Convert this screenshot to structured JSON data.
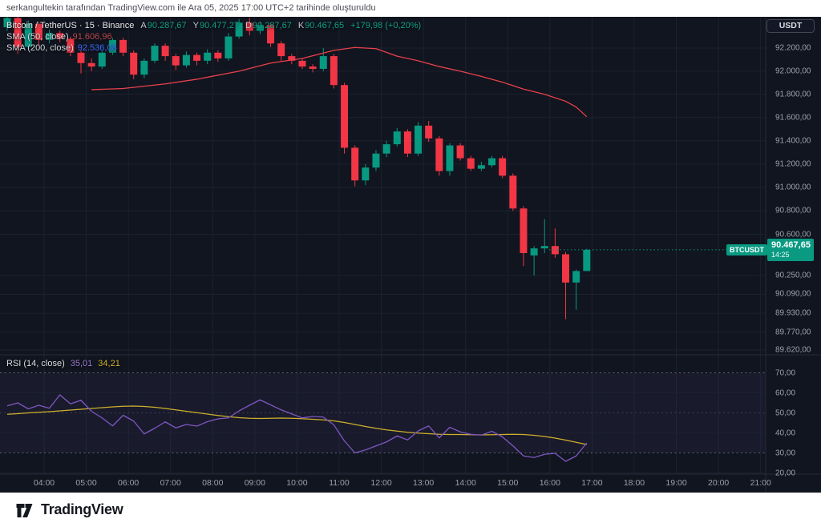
{
  "attribution": "serkangultekin tarafından TradingView.com ile Ara 05, 2025 17:00 UTC+2 tarihinde oluşturuldu",
  "legend": {
    "symbol": "Bitcoin / TetherUS · 15 · Binance",
    "ohlc": [
      {
        "k": "A",
        "v": "90.287,67"
      },
      {
        "k": "Y",
        "v": "90.477,27"
      },
      {
        "k": "D",
        "v": "90.287,67"
      },
      {
        "k": "K",
        "v": "90.467,65"
      }
    ],
    "change": "+179,98 (+0,20%)",
    "sma50_label": "SMA (50, close)",
    "sma50_value": "91.606,96",
    "sma200_label": "SMA (200, close)",
    "sma200_value": "92.536,08"
  },
  "axis": {
    "currency": "USDT",
    "price_labels": [
      {
        "text": "92.200,00",
        "value": 92200
      },
      {
        "text": "92.000,00",
        "value": 92000
      },
      {
        "text": "91.800,00",
        "value": 91800
      },
      {
        "text": "91.600,00",
        "value": 91600
      },
      {
        "text": "91.400,00",
        "value": 91400
      },
      {
        "text": "91.200,00",
        "value": 91200
      },
      {
        "text": "91.000,00",
        "value": 91000
      },
      {
        "text": "90.800,00",
        "value": 90800
      },
      {
        "text": "90.600,00",
        "value": 90600
      },
      {
        "text": "90.250,00",
        "value": 90250
      },
      {
        "text": "90.090,00",
        "value": 90090
      },
      {
        "text": "89.930,00",
        "value": 89930
      },
      {
        "text": "89.770,00",
        "value": 89770
      },
      {
        "text": "89.620,00",
        "value": 89620
      }
    ],
    "rsi_labels": [
      {
        "text": "70,00",
        "value": 70
      },
      {
        "text": "60,00",
        "value": 60
      },
      {
        "text": "50,00",
        "value": 50
      },
      {
        "text": "40,00",
        "value": 40
      },
      {
        "text": "30,00",
        "value": 30
      },
      {
        "text": "20,00",
        "value": 20
      }
    ],
    "time_labels": [
      "04:00",
      "05:00",
      "06:00",
      "07:00",
      "08:00",
      "09:00",
      "10:00",
      "11:00",
      "12:00",
      "13:00",
      "14:00",
      "15:00",
      "16:00",
      "17:00",
      "18:00",
      "19:00",
      "20:00",
      "21:00"
    ]
  },
  "price_tag": {
    "symbol": "BTCUSDT",
    "price": "90.467,65",
    "countdown": "14:25",
    "value": 90467.65
  },
  "rsi_legend": {
    "title": "RSI (14, close)",
    "rsi": "35,01",
    "ma": "34,21"
  },
  "footer": {
    "brand": "TradingView"
  },
  "colors": {
    "up": "#089981",
    "down": "#F23645",
    "sma50": "#E8414C",
    "sma200": "#2962FF",
    "rsi": "#7E57C2",
    "rsi_ma": "#CFB02C",
    "accent": "#0A9A82",
    "grid": "#1C2130",
    "axis_text": "#9BA0AB",
    "background": "#11151F"
  },
  "chart_data": {
    "type": "candlestick",
    "title": "Bitcoin / TetherUS",
    "exchange": "Binance",
    "interval": "15",
    "price_axis_range": [
      89620,
      92480
    ],
    "rsi_axis_range": [
      20,
      70
    ],
    "last_price": 90467.65,
    "sma50_last": 91606.96,
    "sma200_last": 92536.08,
    "rsi_last": 35.01,
    "rsi_ma_last": 34.21,
    "candles": [
      [
        "03:15",
        92380,
        92480,
        92350,
        92460
      ],
      [
        "03:30",
        92460,
        92480,
        92150,
        92210
      ],
      [
        "03:45",
        92210,
        92440,
        92190,
        92410
      ],
      [
        "04:00",
        92410,
        92430,
        92230,
        92270
      ],
      [
        "04:15",
        92270,
        92360,
        92240,
        92330
      ],
      [
        "04:30",
        92330,
        92350,
        92250,
        92280
      ],
      [
        "04:45",
        92280,
        92300,
        92130,
        92160
      ],
      [
        "05:00",
        92160,
        92180,
        91980,
        92070
      ],
      [
        "05:15",
        92070,
        92110,
        92000,
        92040
      ],
      [
        "05:30",
        92040,
        92180,
        92020,
        92160
      ],
      [
        "05:45",
        92160,
        92290,
        92140,
        92270
      ],
      [
        "06:00",
        92270,
        92290,
        92130,
        92160
      ],
      [
        "06:15",
        92160,
        92180,
        91930,
        91970
      ],
      [
        "06:30",
        91970,
        92110,
        91940,
        92090
      ],
      [
        "06:45",
        92090,
        92240,
        92070,
        92220
      ],
      [
        "07:00",
        92220,
        92240,
        92090,
        92130
      ],
      [
        "07:15",
        92130,
        92150,
        92010,
        92050
      ],
      [
        "07:30",
        92050,
        92170,
        92030,
        92140
      ],
      [
        "07:45",
        92140,
        92160,
        92050,
        92090
      ],
      [
        "08:00",
        92090,
        92190,
        92060,
        92160
      ],
      [
        "08:15",
        92160,
        92180,
        92080,
        92110
      ],
      [
        "08:30",
        92110,
        92330,
        92090,
        92300
      ],
      [
        "08:45",
        92300,
        92450,
        92280,
        92420
      ],
      [
        "09:00",
        92420,
        92460,
        92310,
        92350
      ],
      [
        "09:15",
        92350,
        92430,
        92320,
        92400
      ],
      [
        "09:30",
        92400,
        92410,
        92210,
        92240
      ],
      [
        "09:45",
        92240,
        92260,
        92090,
        92130
      ],
      [
        "10:00",
        92130,
        92150,
        92060,
        92090
      ],
      [
        "10:15",
        92090,
        92110,
        92020,
        92040
      ],
      [
        "10:30",
        92040,
        92060,
        91990,
        92020
      ],
      [
        "10:45",
        92020,
        92200,
        92000,
        92130
      ],
      [
        "11:00",
        92130,
        92150,
        91850,
        91880
      ],
      [
        "11:15",
        91880,
        91900,
        91290,
        91340
      ],
      [
        "11:30",
        91340,
        91360,
        91010,
        91060
      ],
      [
        "11:45",
        91060,
        91200,
        91020,
        91170
      ],
      [
        "12:00",
        91170,
        91320,
        91140,
        91290
      ],
      [
        "12:15",
        91290,
        91400,
        91260,
        91370
      ],
      [
        "12:30",
        91370,
        91510,
        91350,
        91480
      ],
      [
        "12:45",
        91480,
        91500,
        91260,
        91290
      ],
      [
        "13:00",
        91290,
        91560,
        91270,
        91530
      ],
      [
        "13:15",
        91530,
        91570,
        91390,
        91420
      ],
      [
        "13:30",
        91420,
        91440,
        91100,
        91140
      ],
      [
        "13:45",
        91140,
        91380,
        91100,
        91360
      ],
      [
        "14:00",
        91360,
        91380,
        91230,
        91250
      ],
      [
        "14:15",
        91250,
        91270,
        91140,
        91160
      ],
      [
        "14:30",
        91160,
        91220,
        91140,
        91190
      ],
      [
        "14:45",
        91190,
        91270,
        91170,
        91250
      ],
      [
        "15:00",
        91250,
        91270,
        91080,
        91100
      ],
      [
        "15:15",
        91100,
        91120,
        90800,
        90820
      ],
      [
        "15:30",
        90820,
        90840,
        90330,
        90440
      ],
      [
        "15:45",
        90420,
        90500,
        90250,
        90480
      ],
      [
        "16:00",
        90480,
        90730,
        90440,
        90500
      ],
      [
        "16:15",
        90500,
        90650,
        90400,
        90430
      ],
      [
        "16:30",
        90430,
        90450,
        89880,
        90190
      ],
      [
        "16:45",
        90190,
        90300,
        89960,
        90287.67
      ],
      [
        "17:00",
        90287.67,
        90477.27,
        90287.67,
        90467.65
      ]
    ],
    "sma50": [
      [
        8,
        91840
      ],
      [
        11,
        91850
      ],
      [
        15,
        91890
      ],
      [
        18,
        91930
      ],
      [
        22,
        92000
      ],
      [
        25,
        92070
      ],
      [
        28,
        92110
      ],
      [
        31,
        92180
      ],
      [
        33,
        92205
      ],
      [
        35,
        92195
      ],
      [
        37,
        92130
      ],
      [
        39,
        92090
      ],
      [
        41,
        92040
      ],
      [
        43,
        92000
      ],
      [
        45,
        91955
      ],
      [
        47,
        91905
      ],
      [
        49,
        91845
      ],
      [
        51,
        91800
      ],
      [
        53,
        91740
      ],
      [
        54,
        91690
      ],
      [
        55,
        91607
      ]
    ],
    "rsi": [
      53.5,
      55,
      52,
      53.8,
      52.3,
      59,
      54.5,
      56.3,
      50.8,
      47.5,
      43.5,
      48.8,
      45.9,
      39.5,
      42.3,
      45.5,
      42.5,
      44.2,
      43.4,
      45.6,
      47,
      47.5,
      51,
      53.8,
      56.5,
      54,
      51.5,
      49.5,
      47.5,
      48.2,
      47.9,
      44,
      36,
      30,
      31.5,
      33.5,
      35.5,
      38.5,
      36.5,
      41,
      43.5,
      37.5,
      42.8,
      40.5,
      39.3,
      38.9,
      40.8,
      38,
      33.5,
      28.5,
      27.7,
      29.3,
      29.8,
      25.8,
      28.5,
      35.01
    ],
    "rsi_ma": [
      49.3,
      49.6,
      50,
      50.3,
      50.6,
      51,
      51.4,
      51.8,
      52.2,
      52.6,
      53,
      53.3,
      53.4,
      53.2,
      52.8,
      52.2,
      51.5,
      50.8,
      50.1,
      49.4,
      48.7,
      48.1,
      47.6,
      47.3,
      47.2,
      47.3,
      47.4,
      47.3,
      47.1,
      46.8,
      46.5,
      46,
      45.2,
      44.2,
      43.2,
      42.3,
      41.5,
      40.9,
      40.3,
      39.9,
      39.6,
      39.3,
      39.2,
      39.2,
      39.1,
      39,
      39.1,
      39.2,
      39.3,
      39.2,
      38.8,
      38.2,
      37.4,
      36.4,
      35.3,
      34.21
    ],
    "rsi_bands": [
      70,
      50,
      30
    ]
  }
}
